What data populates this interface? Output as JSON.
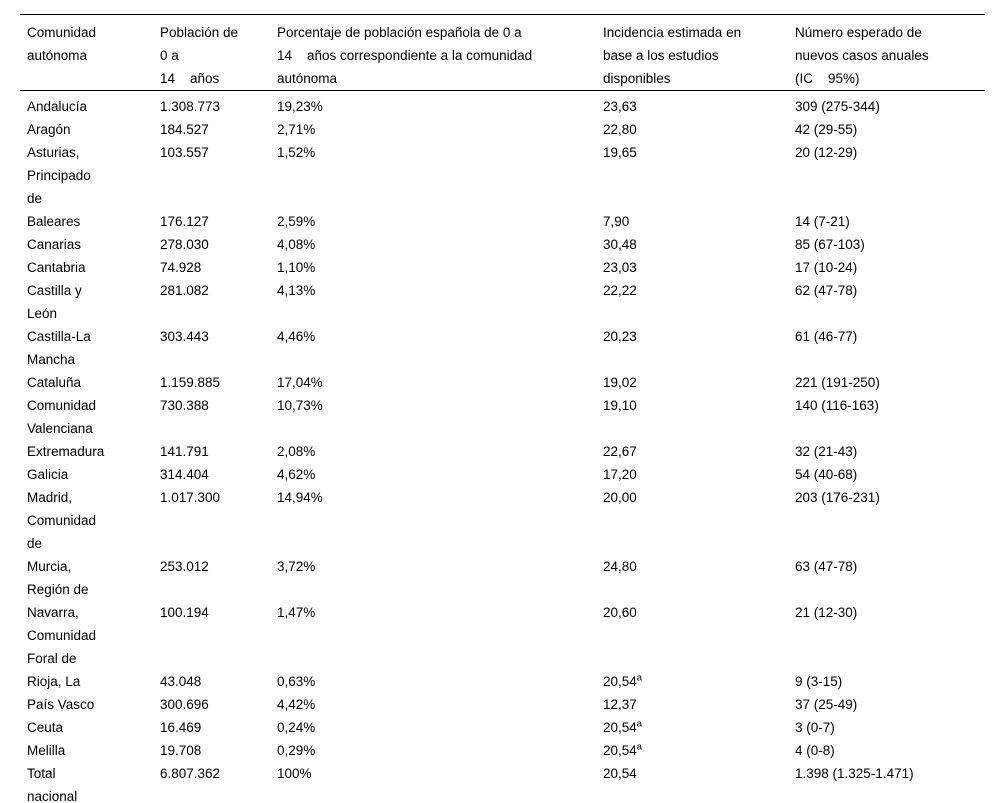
{
  "table": {
    "headers": [
      "Comunidad\nautónoma",
      "Población de\n0 a\n14    años",
      "Porcentaje de población española de 0 a\n14    años correspondiente a la comunidad\nautónoma",
      "Incidencia estimada en\nbase a los estudios\ndisponibles",
      "Número esperado de\nnuevos casos anuales\n(IC    95%)"
    ],
    "footnote_marker": "a",
    "rows": [
      {
        "comunidad": "Andalucía",
        "poblacion": "1.308.773",
        "porcentaje": "19,23%",
        "incidencia": "23,63",
        "incidencia_sup": "",
        "casos": "309 (275-344)"
      },
      {
        "comunidad": "Aragón",
        "poblacion": "184.527",
        "porcentaje": "2,71%",
        "incidencia": "22,80",
        "incidencia_sup": "",
        "casos": "42 (29-55)"
      },
      {
        "comunidad": "Asturias, Principado de",
        "poblacion": "103.557",
        "porcentaje": "1,52%",
        "incidencia": "19,65",
        "incidencia_sup": "",
        "casos": "20 (12-29)"
      },
      {
        "comunidad": "Baleares",
        "poblacion": "176.127",
        "porcentaje": "2,59%",
        "incidencia": "7,90",
        "incidencia_sup": "",
        "casos": "14 (7-21)"
      },
      {
        "comunidad": "Canarias",
        "poblacion": "278.030",
        "porcentaje": "4,08%",
        "incidencia": "30,48",
        "incidencia_sup": "",
        "casos": "85 (67-103)"
      },
      {
        "comunidad": "Cantabria",
        "poblacion": "74.928",
        "porcentaje": "1,10%",
        "incidencia": "23,03",
        "incidencia_sup": "",
        "casos": "17 (10-24)"
      },
      {
        "comunidad": "Castilla y León",
        "poblacion": "281.082",
        "porcentaje": "4,13%",
        "incidencia": "22,22",
        "incidencia_sup": "",
        "casos": "62 (47-78)"
      },
      {
        "comunidad": "Castilla-La Mancha",
        "poblacion": "303.443",
        "porcentaje": "4,46%",
        "incidencia": "20,23",
        "incidencia_sup": "",
        "casos": "61 (46-77)"
      },
      {
        "comunidad": "Cataluña",
        "poblacion": "1.159.885",
        "porcentaje": "17,04%",
        "incidencia": "19,02",
        "incidencia_sup": "",
        "casos": "221 (191-250)"
      },
      {
        "comunidad": "Comunidad Valenciana",
        "poblacion": "730.388",
        "porcentaje": "10,73%",
        "incidencia": "19,10",
        "incidencia_sup": "",
        "casos": "140 (116-163)"
      },
      {
        "comunidad": "Extremadura",
        "poblacion": "141.791",
        "porcentaje": "2,08%",
        "incidencia": "22,67",
        "incidencia_sup": "",
        "casos": "32 (21-43)"
      },
      {
        "comunidad": "Galicia",
        "poblacion": "314.404",
        "porcentaje": "4,62%",
        "incidencia": "17,20",
        "incidencia_sup": "",
        "casos": "54 (40-68)"
      },
      {
        "comunidad": "Madrid, Comunidad de",
        "poblacion": "1.017.300",
        "porcentaje": "14,94%",
        "incidencia": "20,00",
        "incidencia_sup": "",
        "casos": "203 (176-231)"
      },
      {
        "comunidad": "Murcia, Región de",
        "poblacion": "253.012",
        "porcentaje": "3,72%",
        "incidencia": "24,80",
        "incidencia_sup": "",
        "casos": "63 (47-78)"
      },
      {
        "comunidad": "Navarra, Comunidad Foral de",
        "poblacion": "100.194",
        "porcentaje": "1,47%",
        "incidencia": "20,60",
        "incidencia_sup": "",
        "casos": "21 (12-30)"
      },
      {
        "comunidad": "Rioja, La",
        "poblacion": "43.048",
        "porcentaje": "0,63%",
        "incidencia": "20,54",
        "incidencia_sup": "a",
        "casos": "9 (3-15)"
      },
      {
        "comunidad": "País Vasco",
        "poblacion": "300.696",
        "porcentaje": "4,42%",
        "incidencia": "12,37",
        "incidencia_sup": "",
        "casos": "37 (25-49)"
      },
      {
        "comunidad": "Ceuta",
        "poblacion": "16.469",
        "porcentaje": "0,24%",
        "incidencia": "20,54",
        "incidencia_sup": "a",
        "casos": "3 (0-7)"
      },
      {
        "comunidad": "Melilla",
        "poblacion": "19.708",
        "porcentaje": "0,29%",
        "incidencia": "20,54",
        "incidencia_sup": "a",
        "casos": "4 (0-8)"
      },
      {
        "comunidad": "Total nacional",
        "poblacion": "6.807.362",
        "porcentaje": "100%",
        "incidencia": "20,54",
        "incidencia_sup": "",
        "casos": "1.398 (1.325-1.471)"
      }
    ]
  }
}
